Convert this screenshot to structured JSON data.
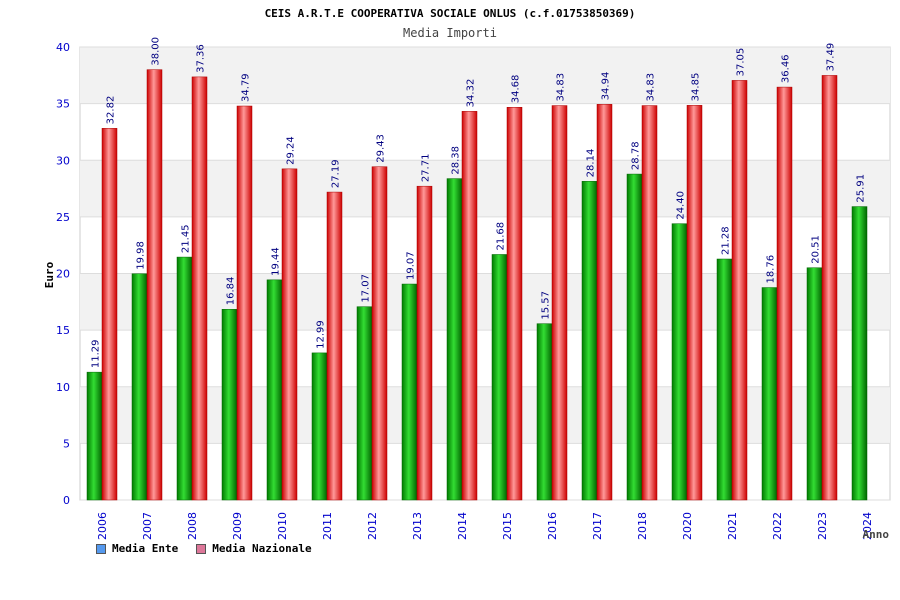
{
  "chart_data": {
    "type": "bar",
    "title": "CEIS A.R.T.E COOPERATIVA SOCIALE ONLUS (c.f.01753850369)",
    "subtitle": "Media Importi",
    "xlabel": "Anno",
    "ylabel": "Euro",
    "ylim": [
      0,
      40
    ],
    "yticks": [
      0,
      5,
      10,
      15,
      20,
      25,
      30,
      35,
      40
    ],
    "categories": [
      "2006",
      "2007",
      "2008",
      "2009",
      "2010",
      "2011",
      "2012",
      "2013",
      "2014",
      "2015",
      "2016",
      "2017",
      "2018",
      "2020",
      "2021",
      "2022",
      "2023",
      "2024"
    ],
    "series": [
      {
        "name": "Media Ente",
        "color": "#00aa00",
        "values": [
          11.29,
          19.98,
          21.45,
          16.84,
          19.44,
          12.99,
          17.07,
          19.07,
          28.38,
          21.68,
          15.57,
          28.14,
          28.78,
          24.4,
          21.28,
          18.76,
          20.51,
          25.91
        ],
        "labels": [
          "11.29",
          "19.98",
          "21.45",
          "16.84",
          "19.44",
          "12.99",
          "17.07",
          "19.07",
          "28.38",
          "21.68",
          "15.57",
          "28.14",
          "28.78",
          "24.40",
          "21.28",
          "18.76",
          "20.51",
          "25.91"
        ]
      },
      {
        "name": "Media Nazionale",
        "color": "#ee2222",
        "values": [
          32.82,
          38.0,
          37.36,
          34.79,
          29.24,
          27.19,
          29.43,
          27.71,
          34.32,
          34.68,
          34.83,
          34.94,
          34.83,
          34.85,
          37.05,
          36.46,
          37.49,
          null
        ],
        "labels": [
          "32.82",
          "38.00",
          "37.36",
          "34.79",
          "29.24",
          "27.19",
          "29.43",
          "27.71",
          "34.32",
          "34.68",
          "34.83",
          "34.94",
          "34.83",
          "34.85",
          "37.05",
          "36.46",
          "37.49",
          null
        ]
      }
    ],
    "legend": [
      "Media Ente",
      "Media Nazionale"
    ],
    "legend_colors": [
      "#5599ee",
      "#dd7799"
    ],
    "grid": true,
    "legend_position": "bottom-left"
  }
}
